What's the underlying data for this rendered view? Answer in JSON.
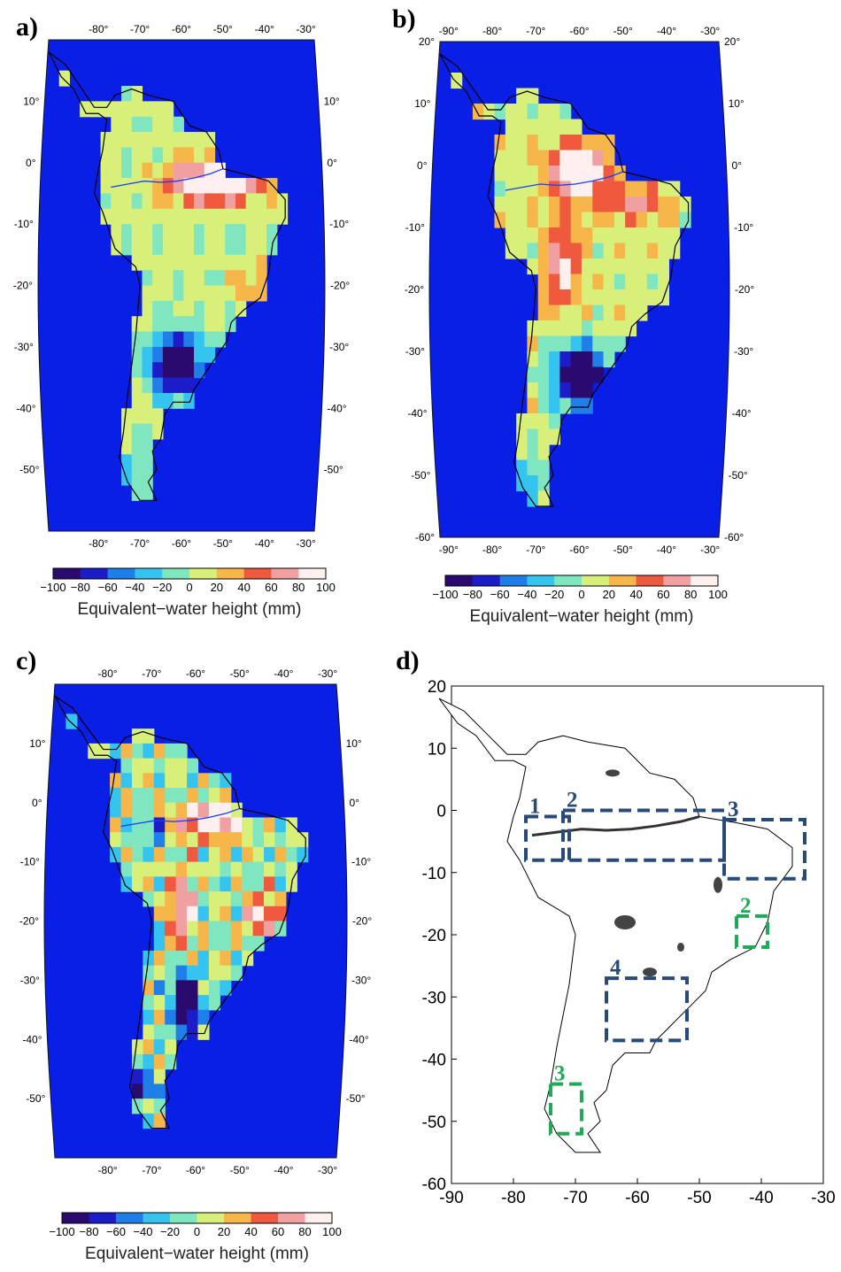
{
  "panels": {
    "a": {
      "label": "a)"
    },
    "b": {
      "label": "b)"
    },
    "c": {
      "label": "c)"
    },
    "d": {
      "label": "d)"
    }
  },
  "map_ticks": {
    "lon": [
      "-80°",
      "-70°",
      "-60°",
      "-50°",
      "-40°",
      "-30°"
    ],
    "lon_b": [
      "-90°",
      "-80°",
      "-70°",
      "-60°",
      "-50°",
      "-40°",
      "-30°"
    ],
    "lat": [
      "10°",
      "0°",
      "-10°",
      "-20°",
      "-30°",
      "-40°",
      "-50°"
    ],
    "lat_b": [
      "20°",
      "10°",
      "0°",
      "-10°",
      "-20°",
      "-30°",
      "-40°",
      "-50°",
      "-60°"
    ]
  },
  "colorbar": {
    "title": "Equivalent−water height (mm)",
    "ticks": [
      "−100",
      "−80",
      "−60",
      "−40",
      "−20",
      "0",
      "20",
      "40",
      "60",
      "80",
      "100"
    ],
    "colors": [
      "#2a0a6e",
      "#1c1cc8",
      "#1f7ee8",
      "#35c3ef",
      "#7fe6c0",
      "#d8f07a",
      "#f6b64a",
      "#ef5a3f",
      "#f0a0a0",
      "#fff0f0"
    ]
  },
  "panel_d": {
    "xticks": [
      "-90",
      "-80",
      "-70",
      "-60",
      "-50",
      "-40",
      "-30"
    ],
    "yticks": [
      "20",
      "10",
      "0",
      "-10",
      "-20",
      "-30",
      "-40",
      "-50",
      "-60"
    ],
    "boxes_blue": [
      {
        "label": "1",
        "lon": [
          -78,
          -71
        ],
        "lat": [
          -1,
          -8
        ]
      },
      {
        "label": "2",
        "lon": [
          -72,
          -46
        ],
        "lat": [
          0,
          -8
        ]
      },
      {
        "label": "3",
        "lon": [
          -46,
          -33
        ],
        "lat": [
          -1.5,
          -11
        ]
      },
      {
        "label": "4",
        "lon": [
          -65,
          -52
        ],
        "lat": [
          -27,
          -37
        ]
      }
    ],
    "boxes_green": [
      {
        "label": "2",
        "lon": [
          -44,
          -39
        ],
        "lat": [
          -17,
          -22
        ]
      },
      {
        "label": "3",
        "lon": [
          -74,
          -69
        ],
        "lat": [
          -44,
          -52
        ]
      }
    ],
    "colors": {
      "blue": "#284a78",
      "green": "#1faa55"
    }
  },
  "chart_data": {
    "type": "heatmap",
    "value_range": [
      -100,
      100
    ],
    "unit": "mm",
    "xlim": [
      -90,
      -30
    ],
    "ylim": [
      -60,
      20
    ],
    "colorbar_title": "Equivalent-water height (mm)"
  }
}
